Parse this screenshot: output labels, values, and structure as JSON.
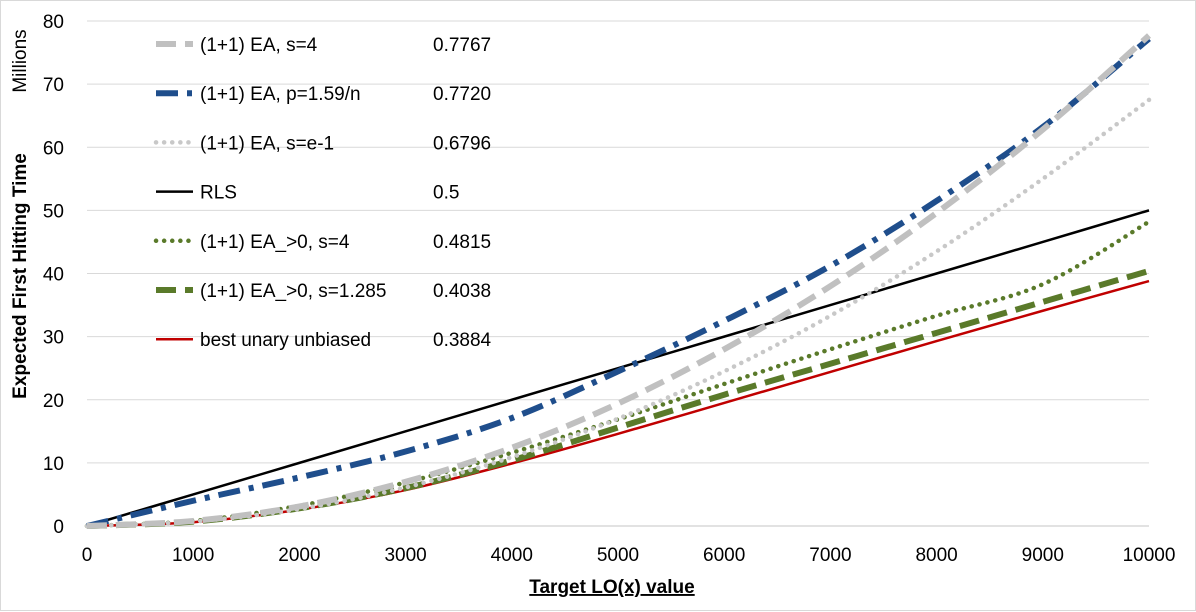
{
  "chart_data": {
    "type": "line",
    "title": "",
    "xlabel": "Target  LO(x) value",
    "ylabel": "Expected First Hitting Time",
    "y_units": "Millions",
    "xlim": [
      0,
      10000
    ],
    "ylim": [
      0,
      80
    ],
    "x_ticks": [
      "0",
      "1000",
      "2000",
      "3000",
      "4000",
      "5000",
      "6000",
      "7000",
      "8000",
      "9000",
      "10000"
    ],
    "y_ticks": [
      "0",
      "10",
      "20",
      "30",
      "40",
      "50",
      "60",
      "70",
      "80"
    ],
    "x": [
      0,
      1000,
      2000,
      3000,
      4000,
      5000,
      6000,
      7000,
      8000,
      9000,
      10000
    ],
    "series": [
      {
        "name": "(1+1) EA, s=4",
        "value": "0.7767",
        "color": "#c0c0c0",
        "style": "dashed",
        "values": [
          0,
          0.8,
          3.1,
          7.0,
          12.4,
          19.4,
          28.0,
          38.0,
          49.6,
          62.8,
          77.7
        ]
      },
      {
        "name": "(1+1) EA, p=1.59/n",
        "value": "0.7720",
        "color": "#1f4e8c",
        "style": "dashdot",
        "values": [
          0,
          4.0,
          7.7,
          11.8,
          17.1,
          24.5,
          32.5,
          41.2,
          51.5,
          63.2,
          77.2
        ]
      },
      {
        "name": "(1+1) EA, s=e-1",
        "value": "0.6796",
        "color": "#c8c8c8",
        "style": "dotted",
        "values": [
          0,
          0.7,
          2.7,
          6.1,
          10.9,
          17.0,
          24.5,
          33.3,
          43.5,
          55.0,
          67.5
        ]
      },
      {
        "name": "RLS",
        "value": "0.5",
        "color": "#000000",
        "style": "solid",
        "values": [
          0,
          5.0,
          10.0,
          15.0,
          20.0,
          25.0,
          30.0,
          35.0,
          40.0,
          45.0,
          50.0
        ]
      },
      {
        "name": "(1+1) EA_>0, s=4",
        "value": "0.4815",
        "color": "#5a7a2a",
        "style": "dotted",
        "values": [
          0,
          0.8,
          3.2,
          6.9,
          11.6,
          16.9,
          22.5,
          28.0,
          33.3,
          38.3,
          48.2
        ]
      },
      {
        "name": "(1+1) EA_>0, s=1.285",
        "value": "0.4038",
        "color": "#5a7a2a",
        "style": "dashed",
        "values": [
          0,
          0.7,
          2.8,
          6.0,
          10.4,
          15.6,
          20.8,
          25.7,
          30.6,
          35.5,
          40.4
        ]
      },
      {
        "name": "best unary unbiased",
        "value": "0.3884",
        "color": "#c00000",
        "style": "solid",
        "values": [
          0,
          0.6,
          2.6,
          5.7,
          9.9,
          14.6,
          19.5,
          24.4,
          29.3,
          34.1,
          38.8
        ]
      }
    ],
    "legend_position": "top-left",
    "grid": "horizontal"
  }
}
